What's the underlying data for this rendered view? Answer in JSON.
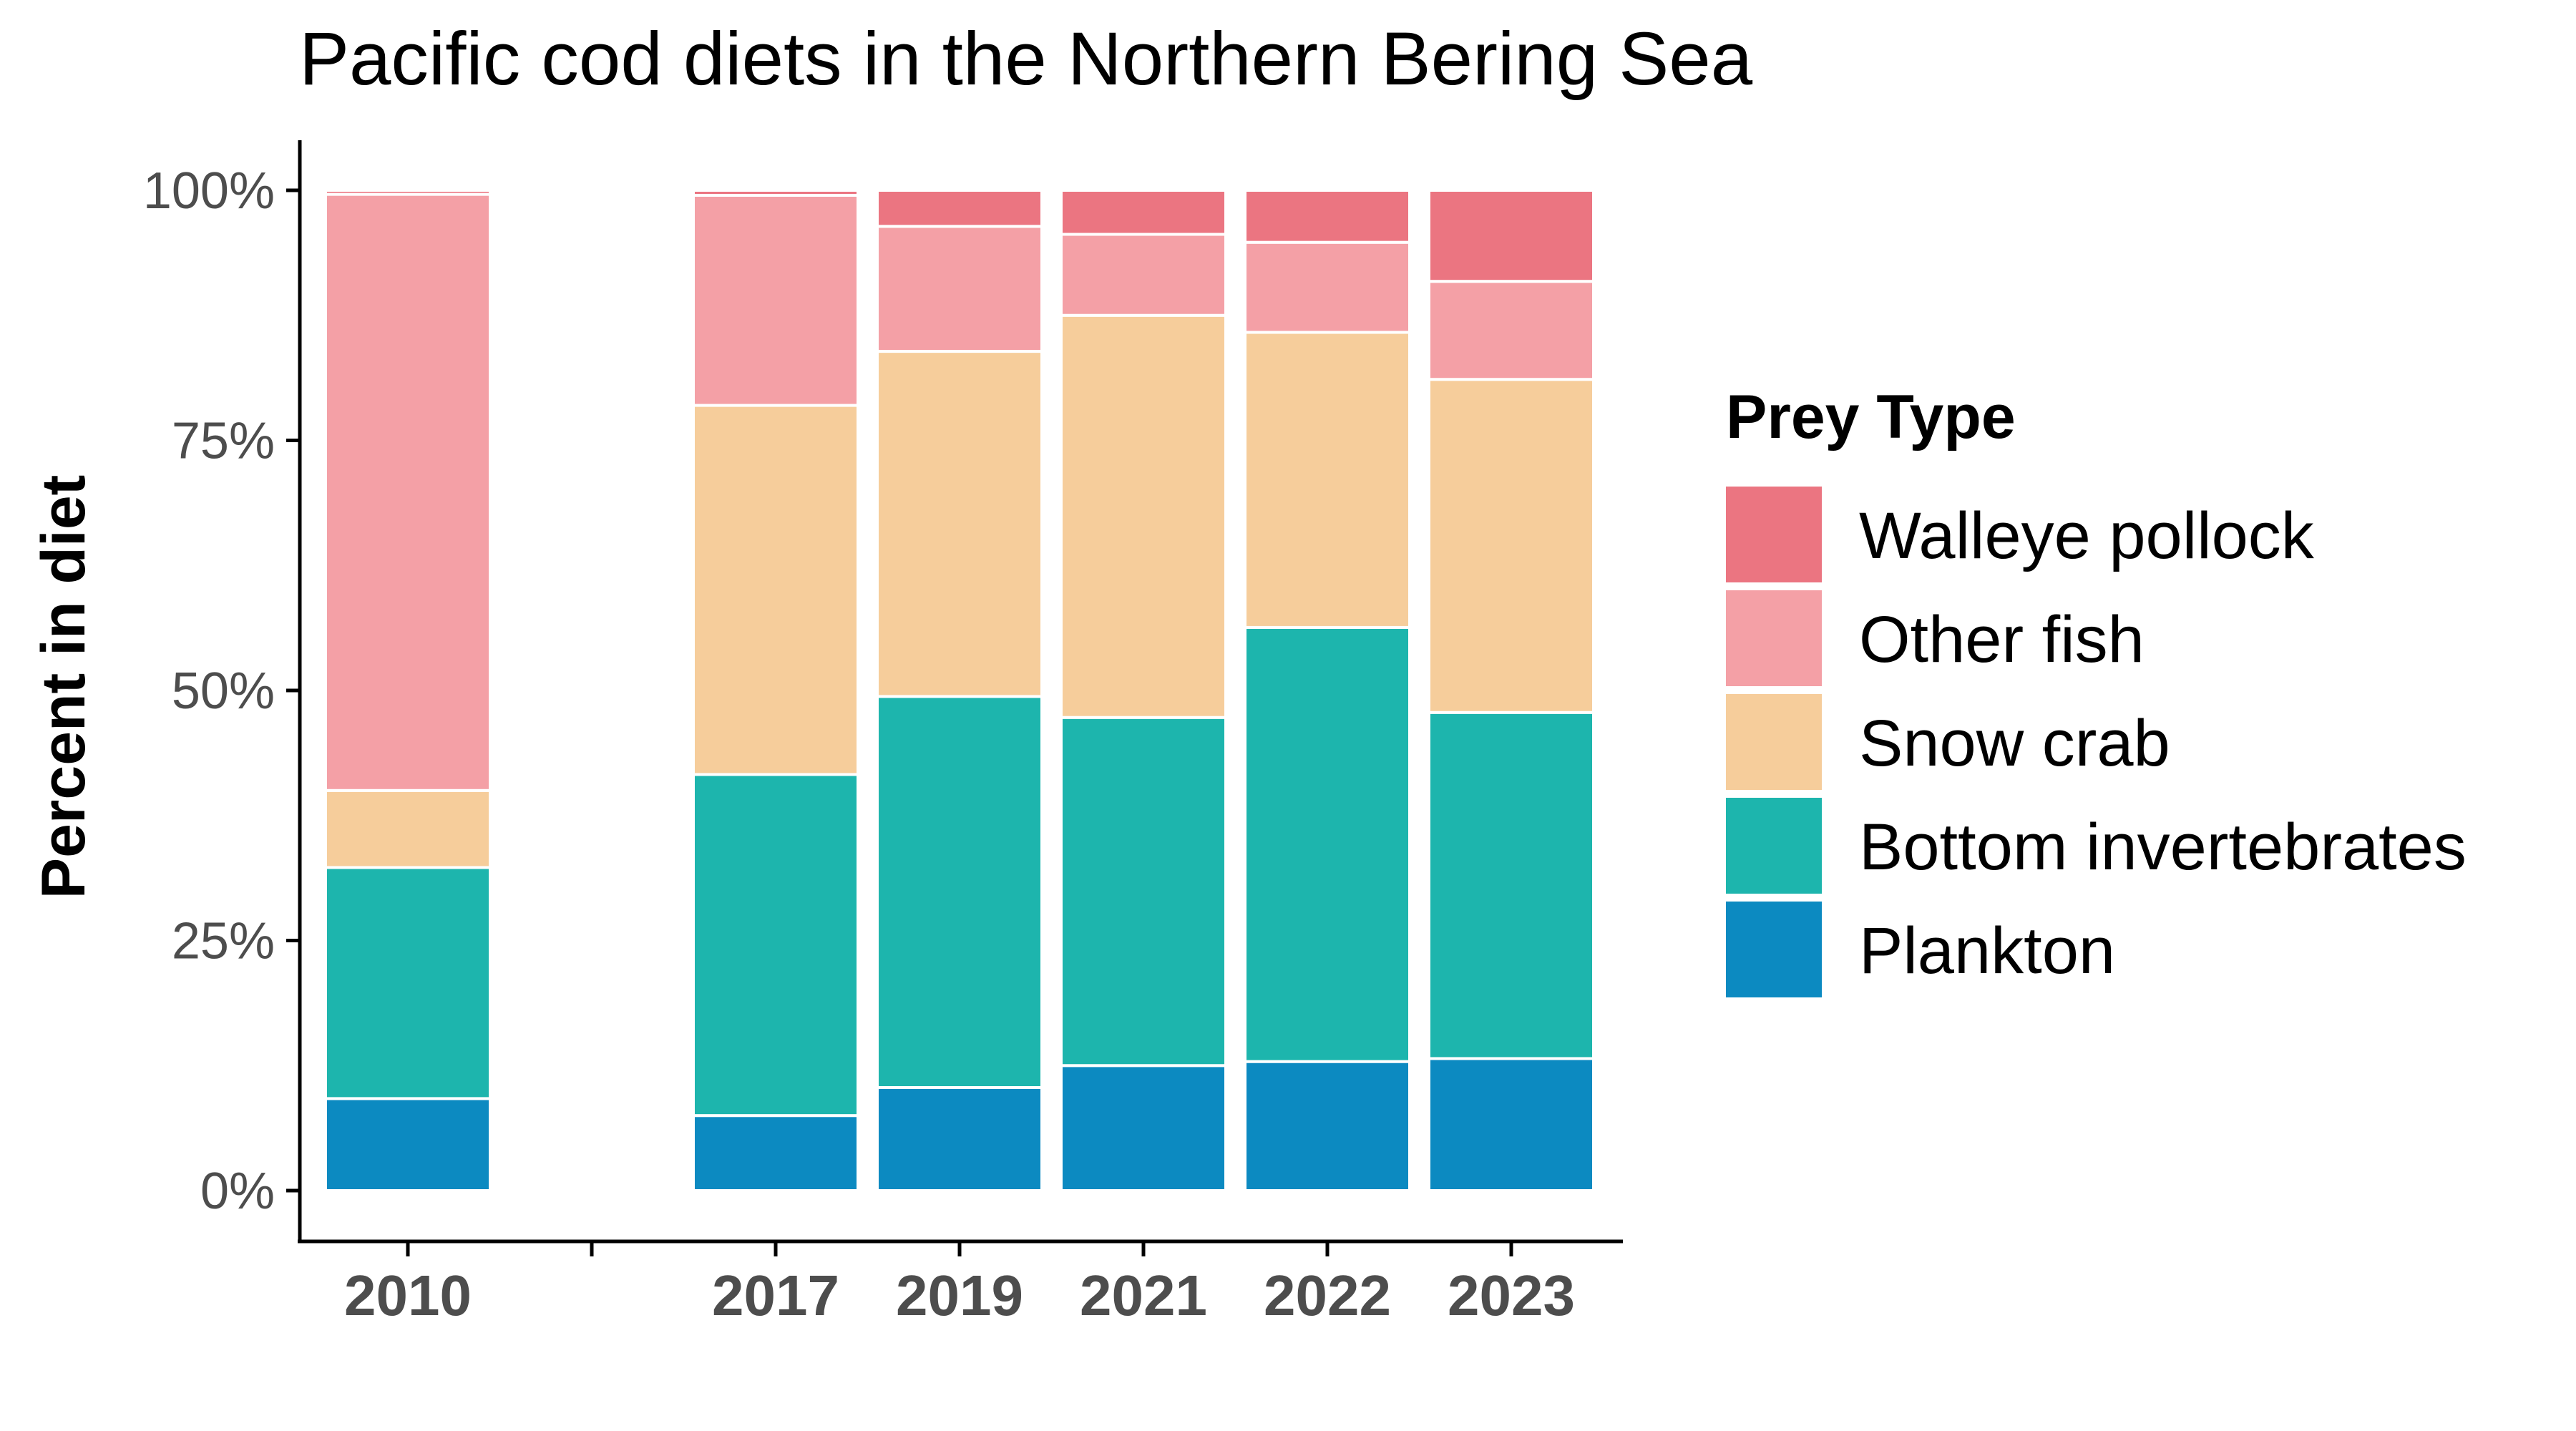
{
  "chart_data": {
    "type": "bar",
    "stacked": true,
    "title": "Pacific cod diets in the Northern Bering Sea",
    "ylabel": "Percent in diet",
    "xlabel": "",
    "ylim": [
      0,
      100
    ],
    "yticks": [
      "0%",
      "25%",
      "50%",
      "75%",
      "100%"
    ],
    "categories": [
      "2010",
      "2017",
      "2019",
      "2021",
      "2022",
      "2023"
    ],
    "x_positions": [
      2010,
      2017,
      2019,
      2021,
      2022,
      2023
    ],
    "legend_title": "Prey Type",
    "legend_position": "right",
    "grid": false,
    "series": [
      {
        "name": "Plankton",
        "color": "#0c8ac1",
        "values": [
          9.2,
          7.5,
          10.3,
          12.5,
          12.9,
          13.2
        ]
      },
      {
        "name": "Bottom invertebrates",
        "color": "#1db5ad",
        "values": [
          23.1,
          34.1,
          39.1,
          34.8,
          43.4,
          34.6
        ]
      },
      {
        "name": "Snow crab",
        "color": "#f6cd9b",
        "values": [
          7.7,
          36.9,
          34.5,
          40.2,
          29.5,
          33.3
        ]
      },
      {
        "name": "Other fish",
        "color": "#f4a0a6",
        "values": [
          59.6,
          21.0,
          12.5,
          8.1,
          9.0,
          9.8
        ]
      },
      {
        "name": "Walleye pollock",
        "color": "#eb7581",
        "values": [
          0.4,
          0.5,
          3.6,
          4.4,
          5.2,
          9.1
        ]
      }
    ]
  }
}
